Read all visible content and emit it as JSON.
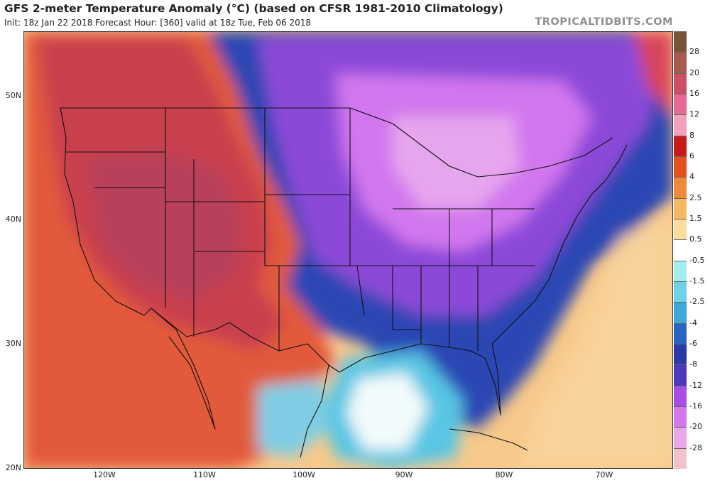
{
  "header": {
    "title": "GFS 2-meter Temperature Anomaly (°C) (based on CFSR 1981-2010 Climatology)",
    "subtitle": "Init: 18z Jan 22 2018   Forecast Hour: [360]   valid at 18z Tue, Feb 06 2018",
    "credit": "TROPICALTIDBITS.COM"
  },
  "axes": {
    "lat_labels": [
      "50N",
      "40N",
      "30N",
      "20N"
    ],
    "lon_labels": [
      "120W",
      "110W",
      "100W",
      "90W",
      "80W",
      "70W"
    ]
  },
  "colorbar": {
    "levels": [
      "28",
      "20",
      "16",
      "12",
      "8",
      "6",
      "4",
      "2.5",
      "1.5",
      "0.5",
      "-0.5",
      "-1.5",
      "-2.5",
      "-4",
      "-6",
      "-8",
      "-12",
      "-16",
      "-20",
      "-28"
    ],
    "colors": [
      "#7a5535",
      "#a85a4e",
      "#cd4f68",
      "#e76a96",
      "#f3a2bc",
      "#c81c1c",
      "#e6501e",
      "#f08a3a",
      "#f6b862",
      "#fbdc9c",
      "#ffffff",
      "#a5eef0",
      "#6fd2e8",
      "#3ea6dc",
      "#2a64c2",
      "#2a3aa6",
      "#4b3abe",
      "#a84ee6",
      "#d675f0",
      "#eaa7ea",
      "#f2c2cc"
    ]
  },
  "anomaly_palette": {
    "strong_warm": "#c8454a",
    "warm": "#e05a3c",
    "mild_warm": "#f6a85c",
    "neutral": "#fbe7c2",
    "cool": "#5fc4e4",
    "cold": "#2a44b2",
    "very_cold": "#a04ee0",
    "extreme_cold": "#e08ce8"
  }
}
